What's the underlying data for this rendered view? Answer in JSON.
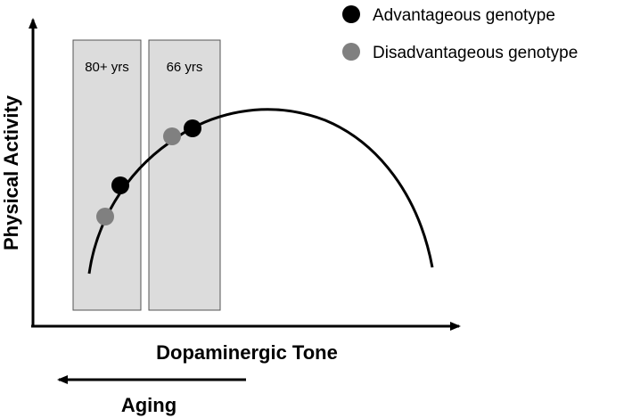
{
  "axes": {
    "x_label": "Dopaminergic Tone",
    "y_label": "Physical Activity"
  },
  "aging_label": "Aging",
  "age_boxes": [
    {
      "label": "80+ yrs"
    },
    {
      "label": "66 yrs"
    }
  ],
  "legend": [
    {
      "label": "Advantageous genotype",
      "color": "#000000"
    },
    {
      "label": "Disadvantageous genotype",
      "color": "#808080"
    }
  ],
  "colors": {
    "box_fill": "#dcdcdc",
    "box_stroke": "#555555",
    "curve": "#000000",
    "axes": "#000000"
  }
}
